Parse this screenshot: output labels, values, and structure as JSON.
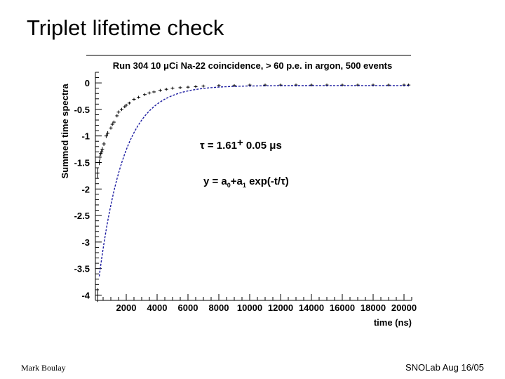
{
  "slide": {
    "title": "Triplet lifetime check",
    "footer_left": "Mark Boulay",
    "footer_right": "SNOLab Aug 16/05"
  },
  "colors": {
    "fit_curve": "#1a1aa0",
    "data_points": "#000000"
  },
  "chart_data": {
    "type": "scatter",
    "title": "Run 304 10 μCi Na-22 coincidence, > 60 p.e. in argon, 500 events",
    "xlabel": "time (ns)",
    "ylabel": "Summed time spectra",
    "xlim": [
      0,
      20500
    ],
    "ylim": [
      -4.1,
      0.2
    ],
    "xticks": [
      2000,
      4000,
      6000,
      8000,
      10000,
      12000,
      14000,
      16000,
      18000,
      20000
    ],
    "yticks": [
      0,
      -0.5,
      -1,
      -1.5,
      -2,
      -2.5,
      -3,
      -3.5,
      -4
    ],
    "xtick_labels": [
      "2000",
      "4000",
      "6000",
      "8000",
      "10000",
      "12000",
      "14000",
      "16000",
      "18000",
      "20000"
    ],
    "ytick_labels": [
      "0",
      "-0.5",
      "-1",
      "-1.5",
      "-2",
      "-2.5",
      "-3",
      "-3.5",
      "-4"
    ],
    "annotations": {
      "tau": {
        "prefix": "τ = 1.61",
        "pm": "+",
        "suffix": " 0.05 μs"
      },
      "model": {
        "y": "y = a",
        "sub0": "0",
        "plus": "+a",
        "sub1": "1",
        "rest": " exp(-t/τ)"
      }
    },
    "fit": {
      "a0": -0.05,
      "a1": -4.2,
      "tau_ns": 1610,
      "x_start": 250,
      "x_end": 20400
    },
    "series": [
      {
        "x": [
          150,
          150,
          250,
          300,
          350,
          400,
          450,
          550,
          700,
          800,
          1000,
          1100,
          1200,
          1400,
          1500,
          1700,
          1900,
          2000,
          2200,
          2500,
          2800,
          3200,
          3500,
          3800,
          4200,
          4600,
          5000,
          5500,
          6000,
          6500,
          7000,
          8000,
          9000,
          10000,
          11000,
          12000,
          13000,
          14000,
          15000,
          16000,
          17000,
          18000,
          19000,
          20000,
          20300
        ],
        "y": [
          -4.0,
          -1.7,
          -1.5,
          -1.4,
          -1.33,
          -1.3,
          -1.25,
          -1.15,
          -1.0,
          -0.95,
          -0.85,
          -0.78,
          -0.74,
          -0.62,
          -0.55,
          -0.5,
          -0.45,
          -0.42,
          -0.38,
          -0.31,
          -0.27,
          -0.22,
          -0.19,
          -0.17,
          -0.14,
          -0.12,
          -0.1,
          -0.09,
          -0.08,
          -0.07,
          -0.06,
          -0.05,
          -0.05,
          -0.04,
          -0.04,
          -0.04,
          -0.04,
          -0.04,
          -0.04,
          -0.04,
          -0.04,
          -0.04,
          -0.04,
          -0.04,
          -0.04
        ],
        "yerr": [
          0.13,
          0.1,
          0.05,
          0.05,
          0.04,
          0.04,
          0.04,
          0.04,
          0.04,
          0.04,
          0.03,
          0.03,
          0.03,
          0.03,
          0.03,
          0.03,
          0.02,
          0.02,
          0.02,
          0.02,
          0.02,
          0.02,
          0.01,
          0.01,
          0.01,
          0.01,
          0.01,
          0.01,
          0.01,
          0.01,
          0.01,
          0.01,
          0.01,
          0.01,
          0.01,
          0.01,
          0.01,
          0.01,
          0.01,
          0.01,
          0.01,
          0.01,
          0.01,
          0.01,
          0.01
        ]
      }
    ],
    "legend": "none",
    "grid": false
  }
}
